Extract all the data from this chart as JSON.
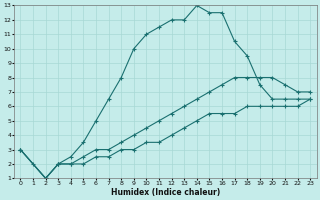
{
  "xlabel": "Humidex (Indice chaleur)",
  "bg_color": "#c5ecea",
  "grid_color": "#a8d8d5",
  "line_color": "#1a7070",
  "xlim": [
    -0.5,
    23.5
  ],
  "ylim": [
    1,
    13
  ],
  "xticks": [
    0,
    1,
    2,
    3,
    4,
    5,
    6,
    7,
    8,
    9,
    10,
    11,
    12,
    13,
    14,
    15,
    16,
    17,
    18,
    19,
    20,
    21,
    22,
    23
  ],
  "yticks": [
    1,
    2,
    3,
    4,
    5,
    6,
    7,
    8,
    9,
    10,
    11,
    12,
    13
  ],
  "curve1_x": [
    0,
    1,
    2,
    3,
    4,
    5,
    6,
    7,
    8,
    9,
    10,
    11,
    12,
    13,
    14,
    15,
    16,
    17,
    18,
    19,
    20,
    21,
    22,
    23
  ],
  "curve1_y": [
    3.0,
    2.0,
    1.0,
    2.0,
    2.5,
    3.5,
    5.0,
    6.5,
    8.0,
    10.0,
    11.0,
    11.5,
    12.0,
    12.0,
    13.0,
    12.5,
    12.5,
    10.5,
    9.5,
    7.5,
    6.5,
    6.5,
    6.5,
    6.5
  ],
  "curve2_x": [
    0,
    2,
    3,
    4,
    5,
    6,
    7,
    8,
    9,
    10,
    11,
    12,
    13,
    14,
    15,
    16,
    17,
    18,
    19,
    20,
    21,
    22,
    23
  ],
  "curve2_y": [
    3.0,
    1.0,
    2.0,
    2.0,
    2.5,
    3.0,
    3.0,
    3.5,
    4.0,
    4.5,
    5.0,
    5.5,
    6.0,
    6.5,
    7.0,
    7.5,
    8.0,
    8.0,
    8.0,
    8.0,
    7.5,
    7.0,
    7.0
  ],
  "curve3_x": [
    0,
    2,
    3,
    4,
    5,
    6,
    7,
    8,
    9,
    10,
    11,
    12,
    13,
    14,
    15,
    16,
    17,
    18,
    19,
    20,
    21,
    22,
    23
  ],
  "curve3_y": [
    3.0,
    1.0,
    2.0,
    2.0,
    2.0,
    2.5,
    2.5,
    3.0,
    3.0,
    3.5,
    3.5,
    4.0,
    4.5,
    5.0,
    5.5,
    5.5,
    5.5,
    6.0,
    6.0,
    6.0,
    6.0,
    6.0,
    6.5
  ]
}
